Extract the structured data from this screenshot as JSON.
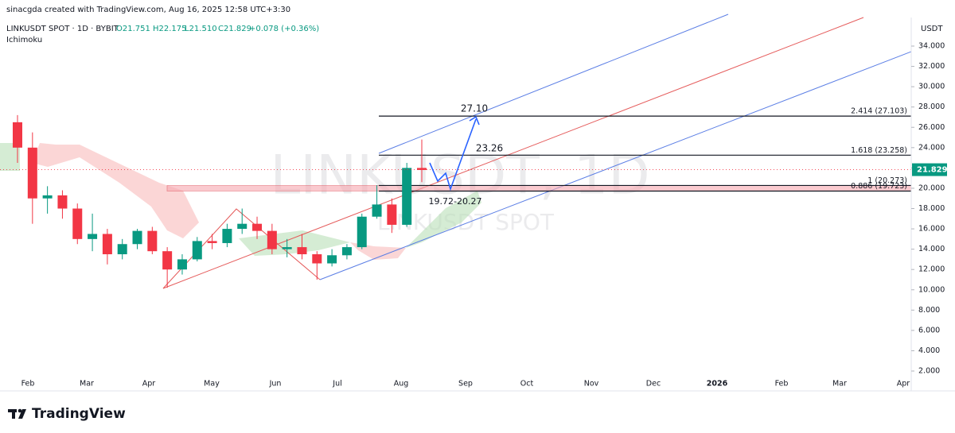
{
  "header": {
    "credit": "sinacgda created with TradingView.com, Aug 16, 2025 12:58 UTC+3:30",
    "symbol": "LINKUSDT SPOT · 1D · BYBIT",
    "open": "O21.751",
    "high": "H22.175",
    "low": "L21.510",
    "close": "C21.829",
    "change": "+0.078 (+0.36%)",
    "indicator": "Ichimoku"
  },
  "watermark": {
    "title": "LINKUSDT, 1D",
    "subtitle": "LINKUSDT SPOT"
  },
  "price_axis": {
    "currency": "USDT",
    "ticks": [
      {
        "value": 34,
        "label": "34.000"
      },
      {
        "value": 32,
        "label": "32.000"
      },
      {
        "value": 30,
        "label": "30.000"
      },
      {
        "value": 28,
        "label": "28.000"
      },
      {
        "value": 26,
        "label": "26.000"
      },
      {
        "value": 24,
        "label": "24.000"
      },
      {
        "value": 22,
        "label": "22.000"
      },
      {
        "value": 20,
        "label": "20.000"
      },
      {
        "value": 18,
        "label": "18.000"
      },
      {
        "value": 16,
        "label": "16.000"
      },
      {
        "value": 14,
        "label": "14.000"
      },
      {
        "value": 12,
        "label": "12.000"
      },
      {
        "value": 10,
        "label": "10.000"
      },
      {
        "value": 8,
        "label": "8.000"
      },
      {
        "value": 6,
        "label": "6.000"
      },
      {
        "value": 4,
        "label": "4.000"
      },
      {
        "value": 2,
        "label": "2.000"
      }
    ],
    "last_price": {
      "value": 21.829,
      "label": "21.829"
    }
  },
  "time_axis": {
    "labels": [
      "Feb",
      "Mar",
      "Apr",
      "May",
      "Jun",
      "Jul",
      "Aug",
      "Sep",
      "Oct",
      "Nov",
      "Dec",
      "2026",
      "Feb",
      "Mar",
      "Apr"
    ]
  },
  "fib_levels": [
    {
      "price": 27.103,
      "label": "2.414 (27.103)"
    },
    {
      "price": 23.258,
      "label": "1.618 (23.258)"
    },
    {
      "price": 20.273,
      "label": "1 (20.273)"
    },
    {
      "price": 19.723,
      "label": "0.886 (19.723)"
    }
  ],
  "annotations": {
    "target": "27.10",
    "level": "23.26",
    "zone": "19.72-20.27"
  },
  "candles": {
    "open": [
      26.5,
      24.0,
      19.0,
      19.3,
      18.0,
      15.0,
      15.5,
      13.5,
      14.5,
      15.8,
      13.8,
      12.0,
      13.0,
      14.8,
      14.6,
      16.0,
      16.5,
      15.8,
      14.0,
      14.2,
      13.5,
      12.6,
      13.4,
      14.2,
      17.2,
      18.4,
      16.4,
      22.0
    ],
    "high": [
      27.2,
      25.5,
      20.2,
      19.8,
      18.5,
      17.5,
      16.0,
      15.0,
      16.0,
      16.2,
      14.2,
      13.5,
      15.2,
      15.5,
      16.5,
      18.0,
      17.2,
      16.5,
      15.0,
      15.5,
      13.8,
      14.0,
      14.5,
      17.5,
      20.3,
      19.0,
      22.5,
      24.8
    ],
    "low": [
      22.5,
      16.5,
      17.5,
      17.0,
      14.5,
      13.8,
      12.5,
      13.0,
      14.0,
      13.5,
      10.2,
      11.5,
      12.8,
      14.0,
      14.2,
      15.5,
      15.0,
      13.5,
      13.2,
      13.0,
      11.0,
      12.3,
      13.0,
      14.0,
      17.0,
      15.6,
      16.2,
      20.6
    ],
    "close": [
      24.0,
      19.0,
      19.3,
      18.0,
      15.0,
      15.5,
      13.5,
      14.5,
      15.8,
      13.8,
      12.0,
      13.0,
      14.8,
      14.6,
      16.0,
      16.5,
      15.8,
      14.0,
      14.2,
      13.5,
      12.6,
      13.4,
      14.2,
      17.2,
      18.4,
      16.4,
      22.0,
      21.8
    ]
  },
  "footer": {
    "brand": "TradingView"
  }
}
